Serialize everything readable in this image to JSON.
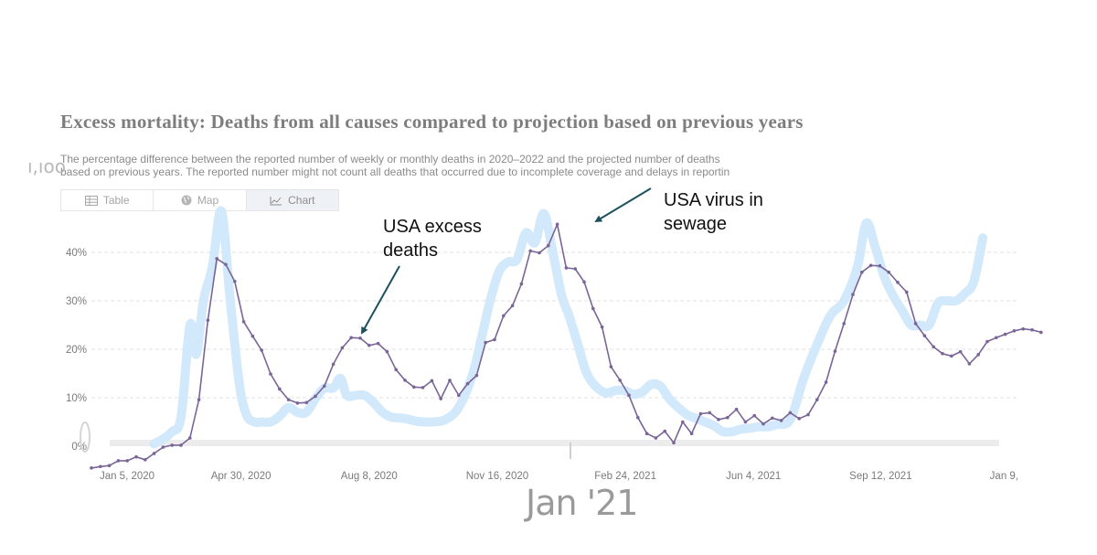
{
  "header": {
    "title": "Excess mortality: Deaths from all causes compared to projection based on previous years",
    "subtitle_line1": "The percentage difference between the reported number of weekly or monthly deaths in 2020–2022 and the projected number of deaths",
    "subtitle_line2": "based on previous years. The reported number might not count all deaths that occurred due to incomplete coverage and delays in reportin",
    "side_mark": "ı,ıoo"
  },
  "tabs": [
    {
      "label": "Table",
      "icon": "table-icon"
    },
    {
      "label": "Map",
      "icon": "globe-icon"
    },
    {
      "label": "Chart",
      "icon": "line-chart-icon",
      "active": true
    }
  ],
  "annotations": {
    "excess_deaths": "USA excess deaths",
    "virus_sewage": "USA virus in sewage",
    "big_label": "Jan '21"
  },
  "colors": {
    "excess_line": "#7a6597",
    "sewage_line": "#d2e9fb",
    "grid": "#e0e0e0",
    "axis_text": "#7a7a7a",
    "arrow": "#1d5160"
  },
  "chart_data": {
    "type": "line",
    "title": "Excess mortality: Deaths from all causes compared to projection based on previous years",
    "xlabel": "",
    "ylabel": "",
    "ylim": [
      -5,
      48
    ],
    "yticks": [
      0,
      10,
      20,
      30,
      40
    ],
    "ytick_labels": [
      "0%",
      "10%",
      "20%",
      "30%",
      "40%"
    ],
    "xtick_labels": [
      "Jan 5, 2020",
      "Apr 30, 2020",
      "Aug 8, 2020",
      "Nov 16, 2020",
      "Feb 24, 2021",
      "Jun 4, 2021",
      "Sep 12, 2021",
      "Jan 9,"
    ],
    "xtick_weeks": [
      0,
      16.7,
      31,
      45.3,
      59.6,
      73.9,
      88.1,
      105
    ],
    "grid": true,
    "series": [
      {
        "name": "USA excess deaths",
        "x": [
          0,
          1,
          2,
          3,
          4,
          5,
          6,
          7,
          8,
          9,
          10,
          11,
          12,
          13,
          14,
          15,
          16,
          17,
          18,
          19,
          20,
          21,
          22,
          23,
          24,
          25,
          26,
          27,
          28,
          29,
          30,
          31,
          32,
          33,
          34,
          35,
          36,
          37,
          38,
          39,
          40,
          41,
          42,
          43,
          44,
          45,
          46,
          47,
          48,
          49,
          50,
          51,
          52,
          53,
          54,
          55,
          56,
          57,
          58,
          59,
          60,
          61,
          62,
          63,
          64,
          65,
          66,
          67,
          68,
          69,
          70,
          71,
          72,
          73,
          74,
          75,
          76,
          77,
          78,
          79,
          80,
          81,
          82,
          83,
          84,
          85,
          86,
          87,
          88,
          89,
          90,
          91,
          92,
          93,
          94,
          95,
          96,
          97,
          98,
          99,
          100,
          101,
          102,
          103,
          104,
          105,
          106
        ],
        "values": [
          -4.5,
          -4.2,
          -4.0,
          -3.0,
          -3.0,
          -2.2,
          -2.8,
          -1.5,
          -0.2,
          0.2,
          0.2,
          1.7,
          9.6,
          26.0,
          38.7,
          37.5,
          34.0,
          25.7,
          22.7,
          19.8,
          14.9,
          11.8,
          9.6,
          8.9,
          9.0,
          10.3,
          12.4,
          16.9,
          20.3,
          22.4,
          22.3,
          20.8,
          21.2,
          19.5,
          15.8,
          13.6,
          12.2,
          12.1,
          13.5,
          9.8,
          13.6,
          10.5,
          12.9,
          14.6,
          21.4,
          22.0,
          26.9,
          29.0,
          33.5,
          40.3,
          39.9,
          41.4,
          45.8,
          36.8,
          36.6,
          33.9,
          28.4,
          24.6,
          16.4,
          13.6,
          10.5,
          5.9,
          2.6,
          1.7,
          3.1,
          0.7,
          5.0,
          2.6,
          6.7,
          6.9,
          5.5,
          5.9,
          7.6,
          5.0,
          6.3,
          4.6,
          5.8,
          5.3,
          6.9,
          5.7,
          6.5,
          9.6,
          13.2,
          19.6,
          25.3,
          31.3,
          35.9,
          37.3,
          37.2,
          35.9,
          33.8,
          31.8,
          25.3,
          22.8,
          20.5,
          19.1,
          18.6,
          19.5,
          17.0,
          18.9,
          21.6,
          22.4,
          23.1,
          23.8,
          24.2,
          24.0,
          23.5
        ]
      },
      {
        "name": "USA virus in sewage",
        "x": [
          7,
          8,
          9,
          10,
          11,
          11.7,
          12.5,
          13.5,
          14.5,
          15.5,
          16.5,
          17.3,
          18.2,
          19,
          20,
          21,
          22,
          23,
          24,
          25,
          26,
          27,
          27.8,
          28.5,
          29.5,
          30.5,
          31.5,
          32.5,
          33.5,
          35,
          36.5,
          38,
          39.5,
          41,
          42.5,
          43.5,
          44.5,
          45.5,
          46.5,
          47.5,
          48.5,
          49.5,
          50.5,
          51.5,
          52.5,
          53.3,
          54.3,
          55.3,
          56.5,
          57.5,
          58.5,
          59.5,
          60.5,
          61.5,
          62.5,
          63.5,
          64.5,
          65.5,
          66.5,
          67.5,
          68.5,
          69.5,
          70.5,
          71.5,
          72.5,
          73.5,
          74.5,
          75.5,
          76.5,
          78,
          79.5,
          81,
          82.5,
          84,
          85.5,
          86.5,
          87.5,
          88.5,
          89.5,
          90.5,
          91.5,
          92.5,
          93.5,
          94.5,
          95.5,
          96.5,
          97.5,
          98.5,
          99.5
        ],
        "values": [
          0.5,
          1.5,
          3,
          6,
          25,
          19,
          30,
          37,
          48.5,
          30,
          13,
          6.5,
          5,
          5,
          5,
          6.2,
          8,
          7,
          7,
          9.8,
          12,
          12,
          14,
          10.5,
          10.5,
          10.5,
          9,
          7,
          6,
          5.7,
          5.1,
          5,
          5.5,
          8,
          14.5,
          22,
          30,
          36,
          38,
          38.5,
          44,
          42,
          48,
          40,
          31,
          27,
          21,
          15,
          12,
          11,
          11.5,
          11.5,
          10.7,
          11.2,
          12.8,
          12.4,
          9.8,
          8,
          6.5,
          5.7,
          5,
          4.2,
          3,
          3,
          3.5,
          3.7,
          4,
          4,
          4.5,
          5.5,
          14,
          21,
          27,
          30,
          37,
          46,
          41,
          35,
          31,
          28,
          25,
          25,
          25,
          29.5,
          30,
          30,
          31.5,
          34,
          43
        ]
      }
    ]
  }
}
